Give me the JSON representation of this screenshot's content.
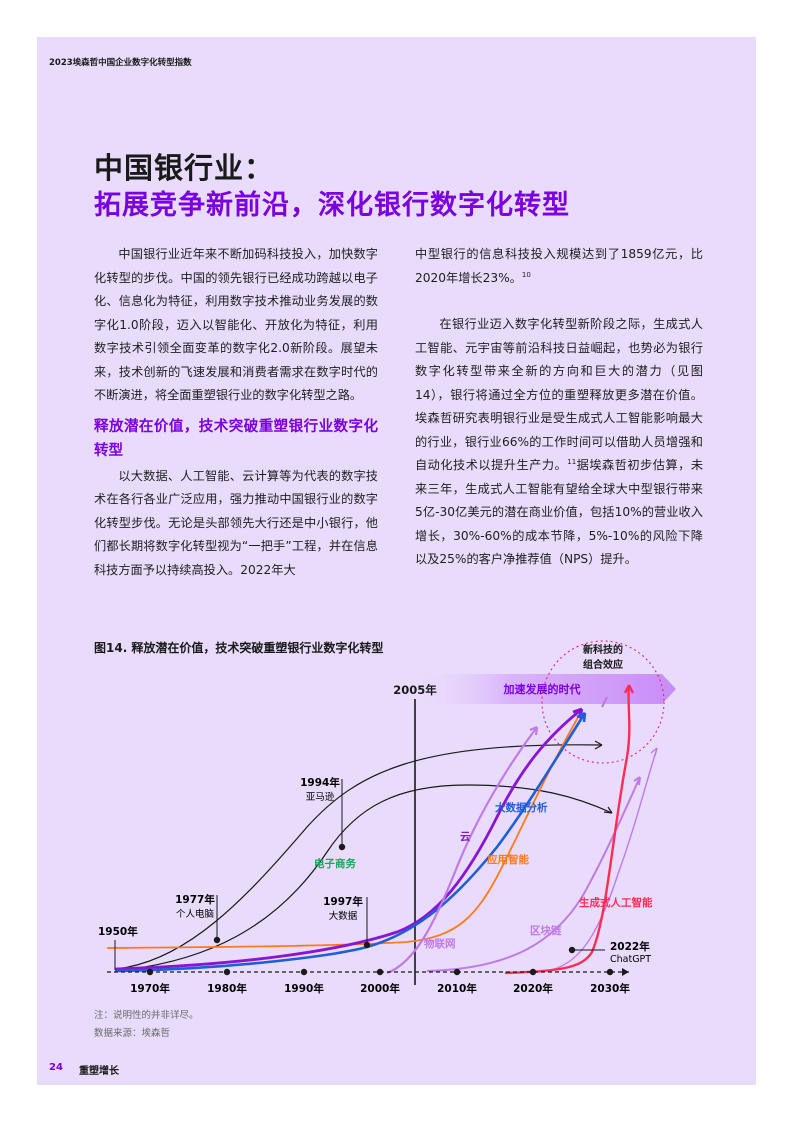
{
  "running_head": "2023埃森哲中国企业数字化转型指数",
  "title_line1": "中国银行业：",
  "title_line2": "拓展竞争新前沿，深化银行数字化转型",
  "left_col": {
    "p1": "中国银行业近年来不断加码科技投入，加快数字化转型的步伐。中国的领先银行已经成功跨越以电子化、信息化为特征，利用数字技术推动业务发展的数字化1.0阶段，迈入以智能化、开放化为特征，利用数字技术引领全面变革的数字化2.0新阶段。展望未来，技术创新的飞速发展和消费者需求在数字时代的不断演进，将全面重塑银行业的数字化转型之路。",
    "subhead": "释放潜在价值，技术突破重塑银行业数字化转型",
    "p2": "以大数据、人工智能、云计算等为代表的数字技术在各行各业广泛应用，强力推动中国银行业的数字化转型步伐。无论是头部领先大行还是中小银行，他们都长期将数字化转型视为“一把手”工程，并在信息科技方面予以持续高投入。2022年大"
  },
  "right_col": {
    "p1": "中型银行的信息科技投入规模达到了1859亿元，比2020年增长23%。",
    "p1_ref": "10",
    "p2a": "在银行业迈入数字化转型新阶段之际，生成式人工智能、元宇宙等前沿科技日益崛起，也势必为银行数字化转型带来全新的方向和巨大的潜力（见图14），银行将通过全方位的重塑释放更多潜在价值。埃森哲研究表明银行业是受生成式人工智能影响最大的行业，银行业66%的工作时间可以借助人员增强和自动化技术以提升生产力。",
    "p2_ref": "11",
    "p2b": "据埃森哲初步估算，未来三年，生成式人工智能有望给全球大中型银行带来5亿-30亿美元的潜在商业价值，包括10%的营业收入增长，30%-60%的成本节降，5%-10%的风险下降以及25%的客户净推荐值（NPS）提升。"
  },
  "figure": {
    "title": "图14. 释放潜在价值，技术突破重塑银行业数字化转型",
    "x_ticks": [
      "1970年",
      "1980年",
      "1990年",
      "2000年",
      "2010年",
      "2020年",
      "2030年"
    ],
    "milestone_2005": "2005年",
    "accel_label": "加速发展的时代",
    "new_tech_line1": "新科技的",
    "new_tech_line2": "组合效应",
    "events": {
      "e1950": "1950年",
      "e1977_year": "1977年",
      "e1977_text": "个人电脑",
      "e1994_year": "1994年",
      "e1994_text": "亚马逊",
      "e1997_year": "1997年",
      "e1997_text": "大数据",
      "e2022_year": "2022年",
      "e2022_text": "ChatGPT"
    },
    "curve_labels": {
      "ecommerce": "电子商务",
      "cloud": "云",
      "bigdata": "大数据分析",
      "applied_ai": "应用智能",
      "iot": "物联网",
      "blockchain": "区块链",
      "genai": "生成式人工智能"
    },
    "colors": {
      "accent_purple": "#7b00e0",
      "ecommerce": "#1aa85c",
      "cloud": "#8a14d6",
      "bigdata": "#1f5fd6",
      "applied_ai": "#ff7a1a",
      "iot": "#c07ae8",
      "blockchain": "#c07ae8",
      "genai": "#ff2d55"
    }
  },
  "notes": {
    "note": "注：说明性的并非详尽。",
    "source": "数据来源：埃森哲"
  },
  "footer": {
    "page_number": "24",
    "text": "重塑增长"
  }
}
